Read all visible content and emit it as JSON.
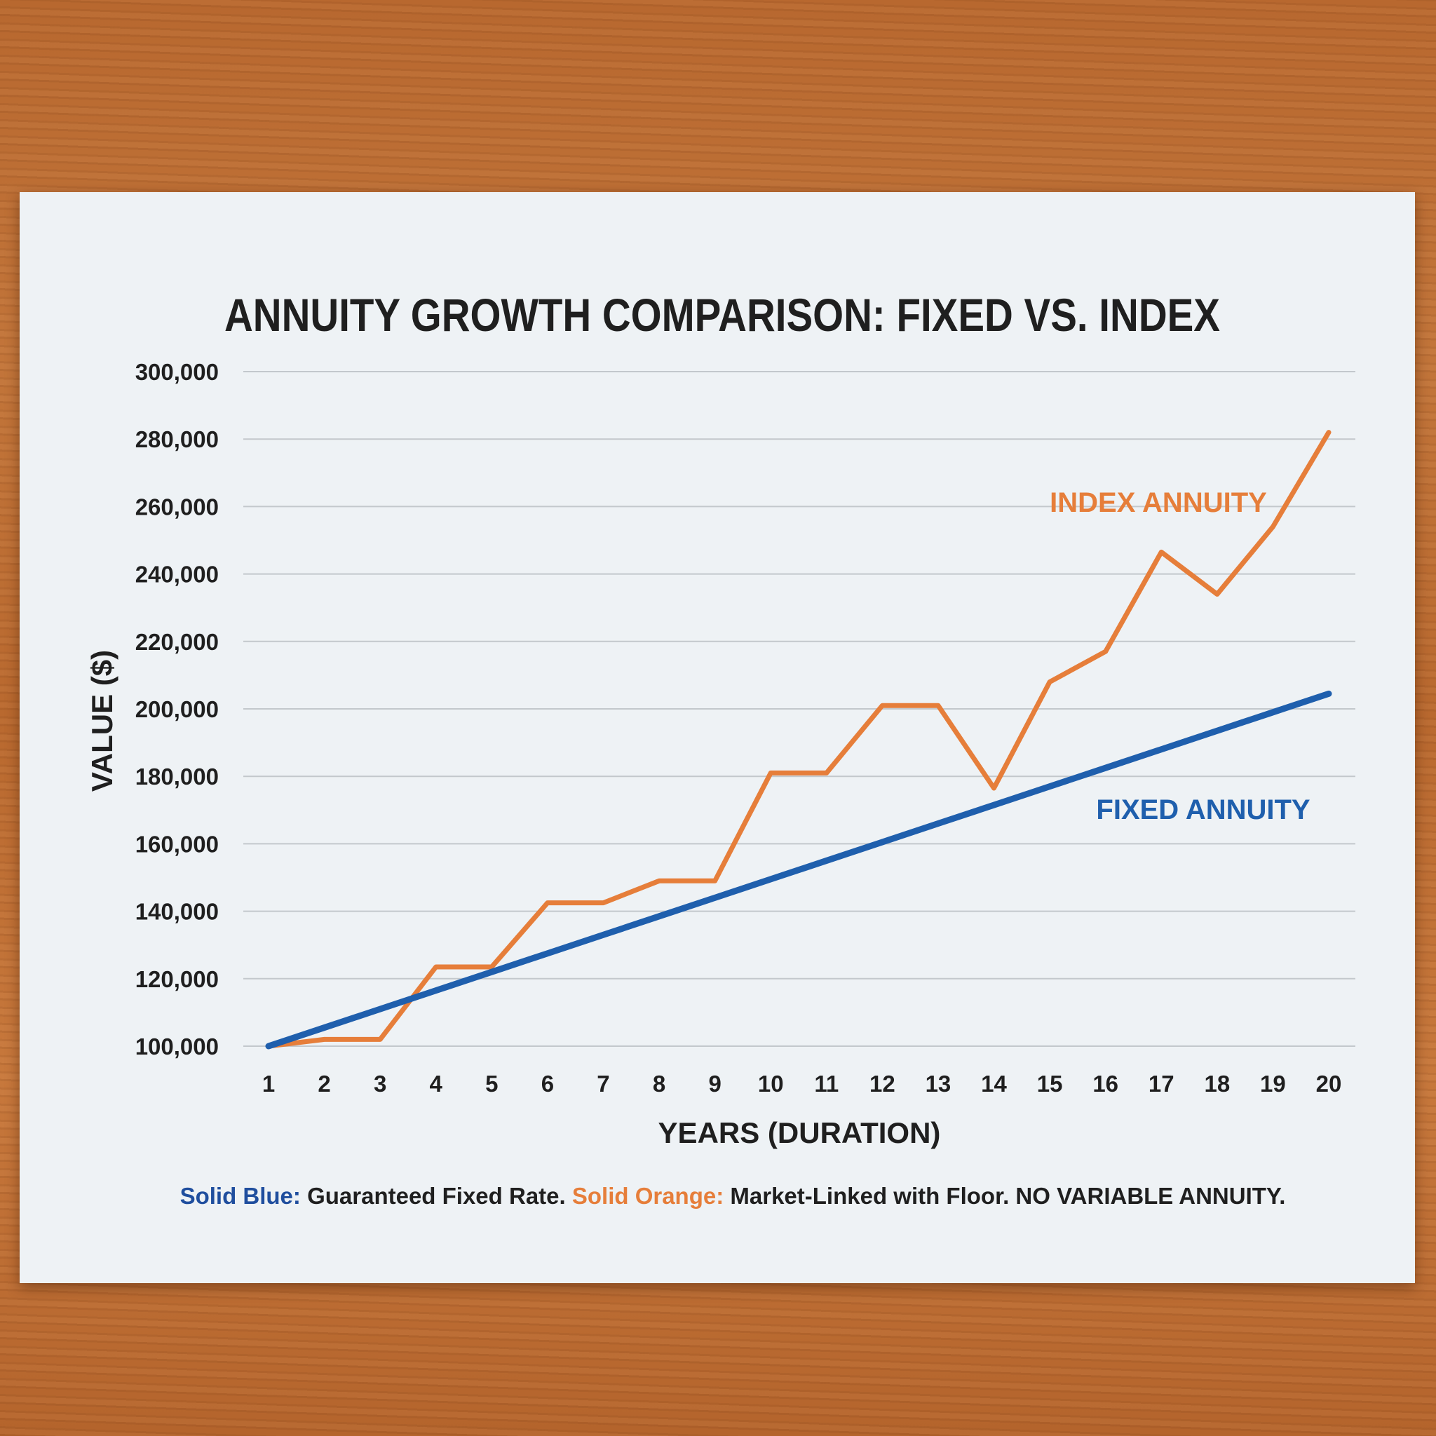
{
  "chart_data": {
    "type": "line",
    "title": "ANNUITY GROWTH COMPARISON: FIXED VS. INDEX",
    "xlabel": "YEARS (DURATION)",
    "ylabel": "VALUE ($)",
    "x": [
      1,
      2,
      3,
      4,
      5,
      6,
      7,
      8,
      9,
      10,
      11,
      12,
      13,
      14,
      15,
      16,
      17,
      18,
      19,
      20
    ],
    "ylim": [
      100000,
      300000
    ],
    "yticks": [
      100000,
      120000,
      140000,
      160000,
      180000,
      200000,
      220000,
      240000,
      260000,
      280000,
      300000
    ],
    "ytick_labels": [
      "100,000",
      "120,000",
      "140,000",
      "160,000",
      "180,000",
      "200,000",
      "220,000",
      "240,000",
      "260,000",
      "280,000",
      "300,000"
    ],
    "grid": true,
    "series": [
      {
        "name": "INDEX ANNUITY",
        "color": "#e67e3a",
        "values": [
          100000,
          102000,
          102000,
          123500,
          123500,
          142500,
          142500,
          149000,
          149000,
          181000,
          181000,
          201000,
          201000,
          176500,
          208000,
          217000,
          246500,
          234000,
          254000,
          282000
        ]
      },
      {
        "name": "FIXED ANNUITY",
        "color": "#1f5fad",
        "values": [
          100000,
          105500,
          111000,
          116500,
          122000,
          127500,
          133000,
          138500,
          144000,
          149500,
          155000,
          160500,
          166000,
          171500,
          177000,
          182500,
          188000,
          193500,
          199000,
          204500
        ]
      }
    ],
    "caption": {
      "blue_key": "Solid Blue:",
      "blue_text": " Guaranteed Fixed Rate. ",
      "orange_key": "Solid Orange:",
      "orange_text": " Market-Linked with Floor. NO VARIABLE ANNUITY."
    }
  }
}
